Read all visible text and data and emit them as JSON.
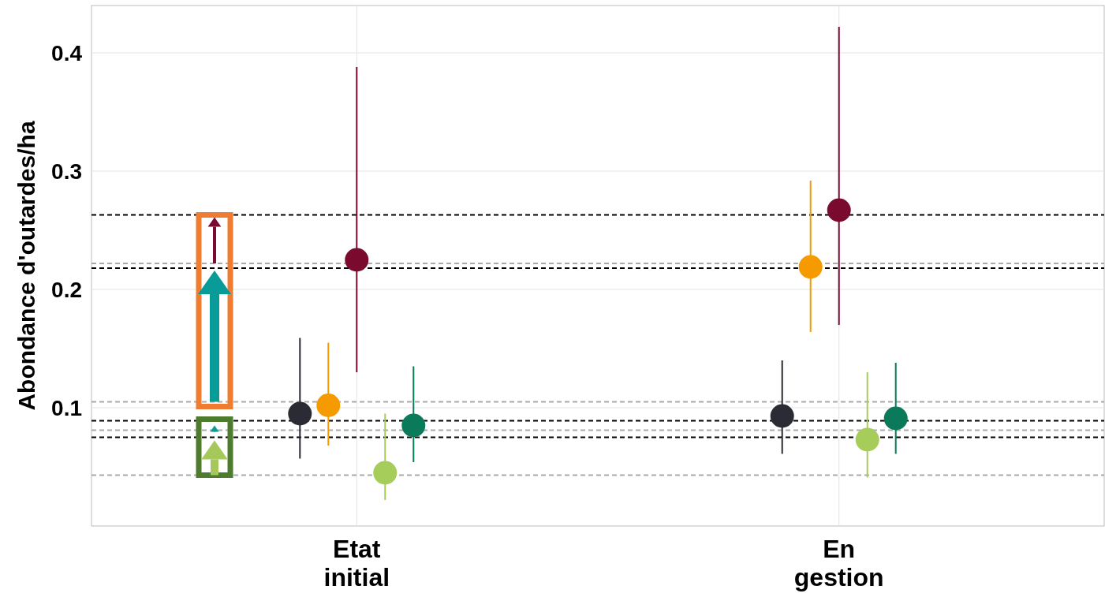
{
  "chart_data": {
    "type": "scatter",
    "ylabel": "Abondance d'outardes/ha",
    "categories": [
      "Etat initial",
      "En gestion"
    ],
    "ylim": [
      0,
      0.44
    ],
    "yticks": [
      0.1,
      0.2,
      0.3,
      0.4
    ],
    "grid": true,
    "marker": "circle",
    "series": [
      {
        "color": "#2b2b35",
        "values": [
          0.095,
          0.093
        ],
        "errors": [
          [
            0.057,
            0.159
          ],
          [
            0.061,
            0.14
          ]
        ]
      },
      {
        "color": "#f59b00",
        "values": [
          0.102,
          0.219
        ],
        "errors": [
          [
            0.068,
            0.155
          ],
          [
            0.164,
            0.292
          ]
        ]
      },
      {
        "color": "#7a0a2e",
        "values": [
          0.225,
          0.267
        ],
        "errors": [
          [
            0.13,
            0.388
          ],
          [
            0.17,
            0.422
          ]
        ]
      },
      {
        "color": "#a6cc5a",
        "values": [
          0.045,
          0.073
        ],
        "errors": [
          [
            0.022,
            0.095
          ],
          [
            0.041,
            0.13
          ]
        ]
      },
      {
        "color": "#0a7a5a",
        "values": [
          0.085,
          0.091
        ],
        "errors": [
          [
            0.054,
            0.135
          ],
          [
            0.061,
            0.138
          ]
        ]
      }
    ],
    "ref_lines": [
      {
        "axis": "y",
        "value": 0.263,
        "color": "#000000",
        "line_style": "dashed"
      },
      {
        "axis": "y",
        "value": 0.218,
        "color": "#000000",
        "line_style": "dashed"
      },
      {
        "axis": "y",
        "value": 0.089,
        "color": "#000000",
        "line_style": "dashed"
      },
      {
        "axis": "y",
        "value": 0.075,
        "color": "#000000",
        "line_style": "dashed"
      },
      {
        "axis": "y",
        "value": 0.222,
        "color": "#aaaaaa",
        "line_style": "dashed"
      },
      {
        "axis": "y",
        "value": 0.105,
        "color": "#aaaaaa",
        "line_style": "dashed"
      },
      {
        "axis": "y",
        "value": 0.081,
        "color": "#aaaaaa",
        "line_style": "dashed"
      },
      {
        "axis": "y",
        "value": 0.043,
        "color": "#aaaaaa",
        "line_style": "dashed"
      }
    ]
  }
}
